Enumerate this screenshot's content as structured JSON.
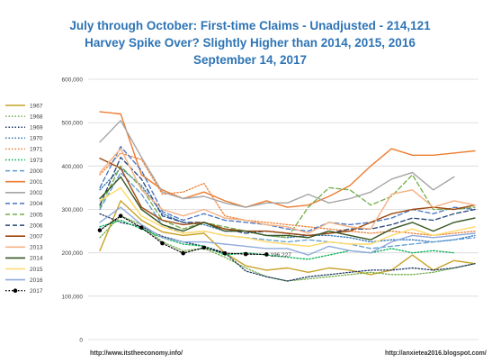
{
  "chart_data": {
    "type": "line",
    "title_lines": [
      "July through October: First-time Claims - Unadjusted - 214,121",
      "Harvey Spike Over? Slightly Higher than 2014, 2015, 2016",
      "September 14, 2017"
    ],
    "ylim": [
      0,
      600000
    ],
    "y_ticks": [
      "0",
      "100,000",
      "200,000",
      "300,000",
      "400,000",
      "500,000",
      "600,000"
    ],
    "y_tick_values": [
      0,
      100000,
      200000,
      300000,
      400000,
      500000,
      600000
    ],
    "grid": true,
    "legend_position": "left",
    "annotation": {
      "text": "196,227",
      "series": "2017",
      "point_index": 8
    },
    "credits": [
      "http://www.itstheeconomy.info/",
      "http://anxietea2016.blogspot.com/"
    ],
    "series": [
      {
        "name": "1967",
        "color": "#c9a227",
        "dash": "solid",
        "width": 1.4,
        "values": [
          205000,
          320000,
          275000,
          248000,
          240000,
          245000,
          200000,
          170000,
          160000,
          165000,
          155000,
          165000,
          160000,
          150000,
          160000,
          195000,
          160000,
          182000,
          175000
        ]
      },
      {
        "name": "1968",
        "color": "#70ad47",
        "dash": "dot",
        "width": 1.3,
        "values": [
          235000,
          285000,
          265000,
          225000,
          205000,
          210000,
          190000,
          165000,
          145000,
          135000,
          140000,
          145000,
          150000,
          155000,
          150000,
          150000,
          155000,
          165000,
          175000
        ]
      },
      {
        "name": "1969",
        "color": "#203864",
        "dash": "dot",
        "width": 1.3,
        "values": [
          290000,
          270000,
          260000,
          238000,
          225000,
          215000,
          200000,
          158000,
          145000,
          135000,
          145000,
          150000,
          155000,
          160000,
          160000,
          165000,
          160000,
          165000,
          175000
        ]
      },
      {
        "name": "1970",
        "color": "#2e75b6",
        "dash": "dot",
        "width": 1.3,
        "values": [
          345000,
          395000,
          355000,
          290000,
          270000,
          265000,
          250000,
          250000,
          240000,
          235000,
          240000,
          240000,
          235000,
          225000,
          230000,
          230000,
          225000,
          230000,
          240000
        ]
      },
      {
        "name": "1971",
        "color": "#ed7d31",
        "dash": "dot",
        "width": 1.3,
        "values": [
          380000,
          430000,
          415000,
          335000,
          340000,
          360000,
          285000,
          275000,
          270000,
          265000,
          260000,
          255000,
          250000,
          245000,
          250000,
          245000,
          240000,
          245000,
          250000
        ]
      },
      {
        "name": "1973",
        "color": "#00b050",
        "dash": "dot",
        "width": 1.3,
        "values": [
          260000,
          275000,
          255000,
          235000,
          220000,
          215000,
          195000,
          200000,
          195000,
          190000,
          185000,
          195000,
          205000,
          200000,
          210000,
          200000,
          205000,
          200000,
          null
        ]
      },
      {
        "name": "2000",
        "color": "#5b9bd5",
        "dash": "dash",
        "width": 1.3,
        "values": [
          300000,
          385000,
          335000,
          265000,
          245000,
          250000,
          240000,
          235000,
          230000,
          225000,
          230000,
          225000,
          220000,
          210000,
          215000,
          220000,
          225000,
          230000,
          235000
        ]
      },
      {
        "name": "2001",
        "color": "#ed7d31",
        "dash": "solid",
        "width": 1.4,
        "values": [
          525000,
          520000,
          380000,
          345000,
          325000,
          340000,
          320000,
          305000,
          320000,
          305000,
          310000,
          330000,
          355000,
          400000,
          440000,
          425000,
          425000,
          430000,
          435000
        ]
      },
      {
        "name": "2002",
        "color": "#a5a5a5",
        "dash": "solid",
        "width": 1.4,
        "values": [
          455000,
          505000,
          420000,
          340000,
          325000,
          330000,
          315000,
          305000,
          315000,
          315000,
          335000,
          315000,
          325000,
          340000,
          370000,
          385000,
          345000,
          375000,
          null
        ]
      },
      {
        "name": "2004",
        "color": "#4472c4",
        "dash": "dash",
        "width": 1.3,
        "values": [
          350000,
          445000,
          390000,
          295000,
          275000,
          290000,
          275000,
          270000,
          265000,
          255000,
          250000,
          270000,
          265000,
          270000,
          280000,
          300000,
          290000,
          305000,
          300000
        ]
      },
      {
        "name": "2005",
        "color": "#70ad47",
        "dash": "dash",
        "width": 1.3,
        "values": [
          305000,
          400000,
          350000,
          275000,
          255000,
          270000,
          260000,
          250000,
          240000,
          235000,
          305000,
          350000,
          345000,
          310000,
          330000,
          380000,
          300000,
          300000,
          305000
        ]
      },
      {
        "name": "2006",
        "color": "#264478",
        "dash": "dash",
        "width": 1.3,
        "values": [
          310000,
          420000,
          370000,
          285000,
          270000,
          270000,
          255000,
          245000,
          250000,
          245000,
          240000,
          245000,
          255000,
          255000,
          265000,
          280000,
          275000,
          290000,
          300000
        ]
      },
      {
        "name": "2007",
        "color": "#9e480e",
        "dash": "solid",
        "width": 1.4,
        "values": [
          418000,
          395000,
          305000,
          275000,
          265000,
          270000,
          255000,
          250000,
          250000,
          245000,
          240000,
          245000,
          250000,
          270000,
          290000,
          300000,
          305000,
          300000,
          310000
        ]
      },
      {
        "name": "2013",
        "color": "#f4b183",
        "dash": "solid",
        "width": 1.4,
        "values": [
          385000,
          440000,
          345000,
          300000,
          285000,
          300000,
          280000,
          275000,
          265000,
          260000,
          245000,
          270000,
          260000,
          255000,
          335000,
          345000,
          305000,
          320000,
          310000
        ]
      },
      {
        "name": "2014",
        "color": "#375623",
        "dash": "solid",
        "width": 1.4,
        "values": [
          325000,
          375000,
          300000,
          265000,
          250000,
          270000,
          250000,
          250000,
          240000,
          240000,
          235000,
          250000,
          240000,
          230000,
          255000,
          270000,
          250000,
          270000,
          280000
        ]
      },
      {
        "name": "2015",
        "color": "#ffd966",
        "dash": "solid",
        "width": 1.4,
        "values": [
          320000,
          350000,
          285000,
          260000,
          245000,
          250000,
          240000,
          235000,
          225000,
          220000,
          215000,
          225000,
          220000,
          220000,
          240000,
          255000,
          240000,
          250000,
          260000
        ]
      },
      {
        "name": "2016",
        "color": "#8faadc",
        "dash": "solid",
        "width": 1.4,
        "values": [
          270000,
          305000,
          265000,
          235000,
          225000,
          225000,
          220000,
          215000,
          210000,
          210000,
          195000,
          215000,
          205000,
          200000,
          225000,
          240000,
          235000,
          240000,
          245000
        ]
      },
      {
        "name": "2017",
        "color": "#000000",
        "dash": "dot",
        "width": 1.2,
        "marker": true,
        "values": [
          252000,
          285000,
          258000,
          222000,
          199000,
          212000,
          199000,
          197000,
          196227,
          null,
          null,
          null,
          null,
          null,
          null,
          null,
          null,
          null,
          null
        ]
      }
    ]
  }
}
